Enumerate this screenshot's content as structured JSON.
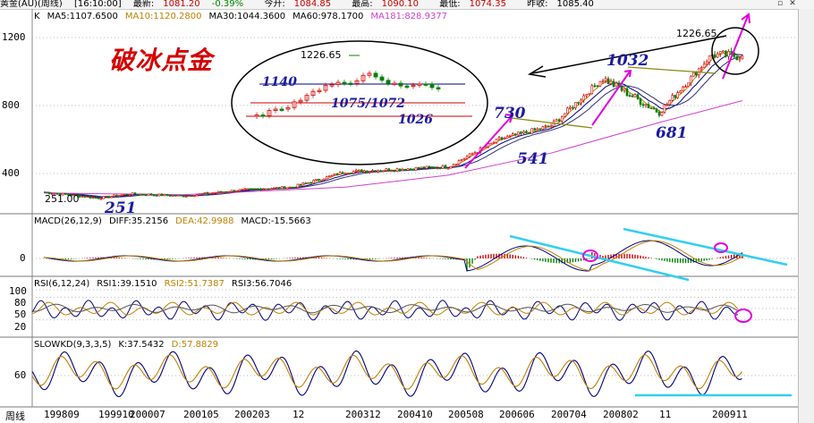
{
  "topbar": {
    "symbol": "黄金(AU)(周线)",
    "time": "[16:10:00]",
    "latest_label": "最新:",
    "latest_value": "1081.20",
    "change": "-0.39%",
    "open_label": "今开:",
    "open_value": "1084.85",
    "high_label": "最高:",
    "high_value": "1090.10",
    "low_label": "最低:",
    "low_value": "1074.35",
    "prev_label": "昨收:",
    "prev_value": "1085.40"
  },
  "legends": {
    "main": [
      {
        "text": "K",
        "color": "#000000"
      },
      {
        "text": "MA5:1107.6500",
        "color": "#000000"
      },
      {
        "text": "MA10:1120.2800",
        "color": "#c08000"
      },
      {
        "text": "MA30:1044.3600",
        "color": "#000000"
      },
      {
        "text": "MA60:978.1700",
        "color": "#000000"
      },
      {
        "text": "MA181:828.9377",
        "color": "#d040d0"
      }
    ],
    "macd": [
      {
        "text": "MACD(26,12,9)",
        "color": "#000000"
      },
      {
        "text": "DIFF:35.2156",
        "color": "#000000"
      },
      {
        "text": "DEA:42.9988",
        "color": "#c08000"
      },
      {
        "text": "MACD:-15.5663",
        "color": "#000000"
      }
    ],
    "rsi": [
      {
        "text": "RSI(6,12,24)",
        "color": "#000000"
      },
      {
        "text": "RSI1:39.1510",
        "color": "#000000"
      },
      {
        "text": "RSI2:51.7387",
        "color": "#c08000"
      },
      {
        "text": "RSI3:56.7046",
        "color": "#000000"
      }
    ],
    "kd": [
      {
        "text": "SLOWKD(9,3,3,5)",
        "color": "#000000"
      },
      {
        "text": "K:37.5432",
        "color": "#000000"
      },
      {
        "text": "D:57.8829",
        "color": "#c08000"
      }
    ]
  },
  "annotations": {
    "title": "破冰点金",
    "inset_high": "1226.65",
    "inset_1140": "1140",
    "inset_1075": "1075/1072",
    "inset_1026": "1026",
    "chart_high": "1226.65",
    "chart_low_label": "251.00",
    "n251": "251",
    "n730": "730",
    "n541": "541",
    "n1032": "1032",
    "n681": "681"
  },
  "colors": {
    "up_candle": "#d40000",
    "down_candle": "#008000",
    "ma_dark": "#000080",
    "ma_gold": "#c08000",
    "ma_long": "#d040d0",
    "trend_cyan": "#30d0f0",
    "mark_magenta": "#e000e0",
    "handwriting": "#1a1aa0"
  },
  "chart_data": {
    "type": "line",
    "title": "破冰点金",
    "xlabel": "",
    "ylabel": "",
    "x_ticks": [
      "周线",
      "199809",
      "199910",
      "200007",
      "200105",
      "200203",
      "12",
      "200312",
      "200410",
      "200508",
      "200606",
      "200704",
      "200802",
      "11",
      "200911"
    ],
    "y_ticks": [
      400,
      800,
      1200
    ],
    "ylim": [
      200,
      1300
    ],
    "key_points": [
      {
        "label": "251",
        "date": "199909",
        "price": 251
      },
      {
        "label": "730",
        "date": "200605",
        "price": 730
      },
      {
        "label": "541",
        "date": "200606",
        "price": 541
      },
      {
        "label": "1032",
        "date": "200803",
        "price": 1032
      },
      {
        "label": "681",
        "date": "200810",
        "price": 681
      },
      {
        "label": "1226.65",
        "date": "200912",
        "price": 1226.65
      }
    ],
    "series": [
      {
        "name": "K",
        "color": "#000000",
        "x": [
          "199809",
          "199910",
          "200007",
          "200105",
          "200203",
          "200210",
          "200312",
          "200410",
          "200508",
          "200606",
          "200704",
          "200802",
          "200811",
          "200911",
          "200912"
        ],
        "values": [
          290,
          255,
          280,
          268,
          300,
          320,
          410,
          425,
          440,
          600,
          680,
          960,
          760,
          1100,
          1090
        ]
      },
      {
        "name": "MA181",
        "color": "#d040d0",
        "x": [
          "199809",
          "200105",
          "200312",
          "200508",
          "200704",
          "200811",
          "200912"
        ],
        "values": [
          285,
          275,
          320,
          390,
          520,
          700,
          829
        ]
      }
    ],
    "sub_panels": [
      {
        "name": "MACD(26,12,9)",
        "y_ticks": [
          0
        ],
        "values": {
          "DIFF": 35.2156,
          "DEA": 42.9988,
          "MACD": -15.5663
        }
      },
      {
        "name": "RSI(6,12,24)",
        "y_ticks": [
          20,
          50,
          80,
          100
        ],
        "values": {
          "RSI1": 39.151,
          "RSI2": 51.7387,
          "RSI3": 56.7046
        }
      },
      {
        "name": "SLOWKD(9,3,3,5)",
        "y_ticks": [
          60
        ],
        "values": {
          "K": 37.5432,
          "D": 57.8829
        }
      }
    ]
  },
  "axis": {
    "price_ticks": [
      "1200",
      "800",
      "400"
    ],
    "macd_ticks": [
      "0"
    ],
    "rsi_ticks": [
      "100",
      "80",
      "50",
      "20"
    ],
    "kd_ticks": [
      "60"
    ]
  }
}
